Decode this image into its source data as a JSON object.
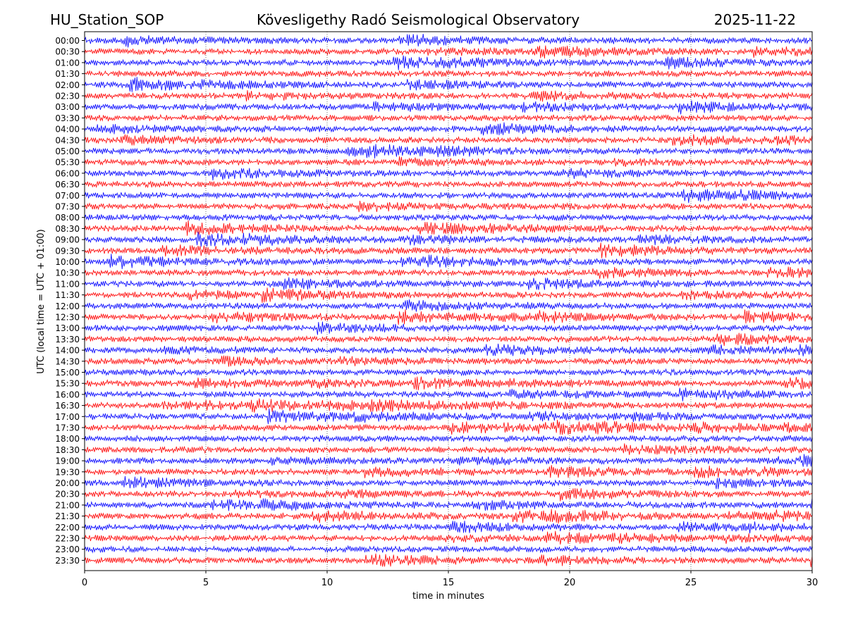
{
  "header": {
    "station": "HU_Station_SOP",
    "observatory": "Kövesligethy Radó Seismological Observatory",
    "date": "2025-11-22"
  },
  "chart_data": {
    "type": "line",
    "subtype": "helicorder",
    "title": "Kövesligethy Radó Seismological Observatory",
    "xlabel": "time in minutes",
    "ylabel": "UTC (local time = UTC + 01:00)",
    "xlim": [
      0,
      30
    ],
    "x_ticks": [
      "0",
      "5",
      "10",
      "15",
      "20",
      "25",
      "30"
    ],
    "grid": "vertical dotted lines at each 5 minutes",
    "trace_colors": [
      "#0000ff",
      "#ff0000"
    ],
    "rows": [
      "00:00",
      "00:30",
      "01:00",
      "01:30",
      "02:00",
      "02:30",
      "03:00",
      "03:30",
      "04:00",
      "04:30",
      "05:00",
      "05:30",
      "06:00",
      "06:30",
      "07:00",
      "07:30",
      "08:00",
      "08:30",
      "09:00",
      "09:30",
      "10:00",
      "10:30",
      "11:00",
      "11:30",
      "12:00",
      "12:30",
      "13:00",
      "13:30",
      "14:00",
      "14:30",
      "15:00",
      "15:30",
      "16:00",
      "16:30",
      "17:00",
      "17:30",
      "18:00",
      "18:30",
      "19:00",
      "19:30",
      "20:00",
      "20:30",
      "21:00",
      "21:30",
      "22:00",
      "22:30",
      "23:00",
      "23:30"
    ]
  }
}
